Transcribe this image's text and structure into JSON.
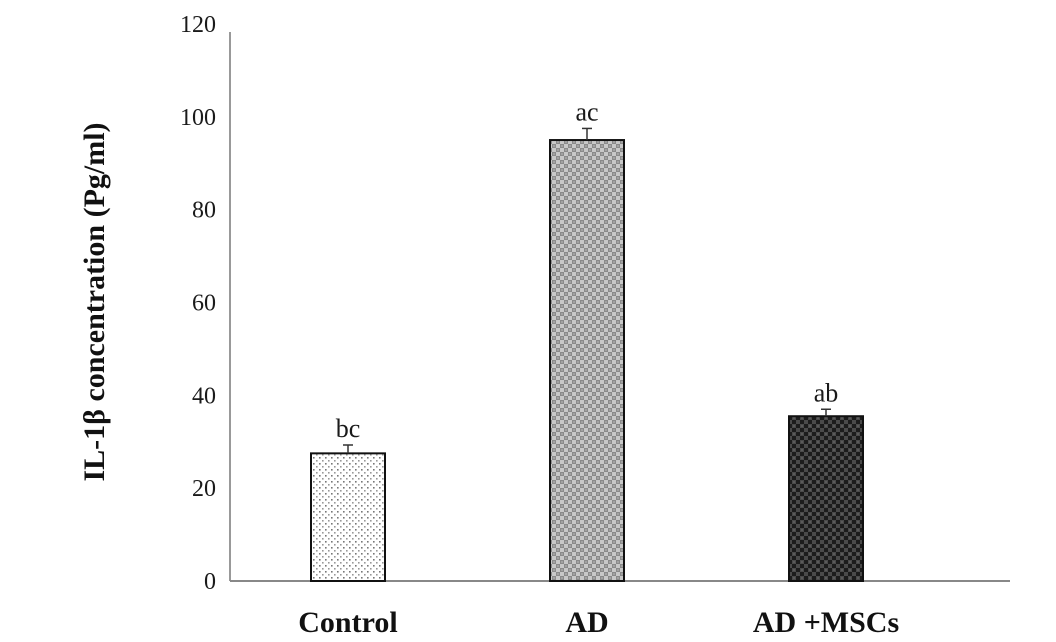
{
  "chart_data": {
    "type": "bar",
    "title": "",
    "xlabel": "",
    "ylabel": "IL-1β concentration (Pg/ml)",
    "ylim": [
      0,
      120
    ],
    "yticks": [
      "0",
      "20",
      "40",
      "60",
      "80",
      "100",
      "120"
    ],
    "grid": false,
    "categories": [
      "Control",
      "AD",
      "AD +MSCs"
    ],
    "values": [
      27.5,
      95,
      35.5
    ],
    "errors": [
      1.8,
      2.5,
      1.5
    ],
    "annotations": [
      "bc",
      "ac",
      "ab"
    ],
    "patterns": [
      "sparse-dots",
      "light-checker",
      "dark-checker"
    ]
  }
}
